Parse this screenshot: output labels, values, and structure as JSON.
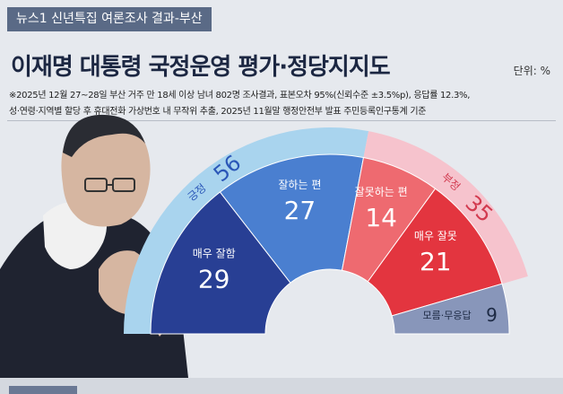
{
  "header": {
    "tag": "뉴스1 신년특집 여론조사 결과-부산",
    "title": "이재명 대통령 국정운영 평가·정당지지도",
    "unit": "단위: %",
    "note_line1": "※2025년 12월 27~28일 부산 거주 만 18세 이상 남녀 802명 조사결과, 표본오차 95%(신뢰수준 ±3.5%p), 응답률 12.3%,",
    "note_line2": "성·연령·지역별 할당 후 휴대전화 가상번호 내 무작위 추출, 2025년 11월말 행정안전부 발표 주민등록인구통계 기준"
  },
  "colors": {
    "positive_outer": "#a9d4ee",
    "positive_mid": "#4a7fd0",
    "positive_inner": "#283f94",
    "negative_outer": "#f6c3cd",
    "negative_mid": "#ee6a70",
    "negative_inner": "#e3353f",
    "unknown": "#8896ba",
    "positive_label": "#2b57b8",
    "negative_label": "#d23a4f"
  },
  "chart_data": {
    "type": "pie",
    "style": "semicircle-nested",
    "groups": [
      {
        "label": "긍정",
        "value": 56,
        "color_key": "positive"
      },
      {
        "label": "부정",
        "value": 35,
        "color_key": "negative"
      },
      {
        "label": "모름·무응답",
        "value": 9,
        "color_key": "unknown"
      }
    ],
    "slices": [
      {
        "label": "매우 잘함",
        "value": 29,
        "group": "긍정",
        "color_key": "positive_inner"
      },
      {
        "label": "잘하는 편",
        "value": 27,
        "group": "긍정",
        "color_key": "positive_mid"
      },
      {
        "label": "잘못하는 편",
        "value": 14,
        "group": "부정",
        "color_key": "negative_mid"
      },
      {
        "label": "매우 잘못",
        "value": 21,
        "group": "부정",
        "color_key": "negative_inner"
      },
      {
        "label": "모름·무응답",
        "value": 9,
        "group": "모름·무응답",
        "color_key": "unknown"
      }
    ]
  }
}
